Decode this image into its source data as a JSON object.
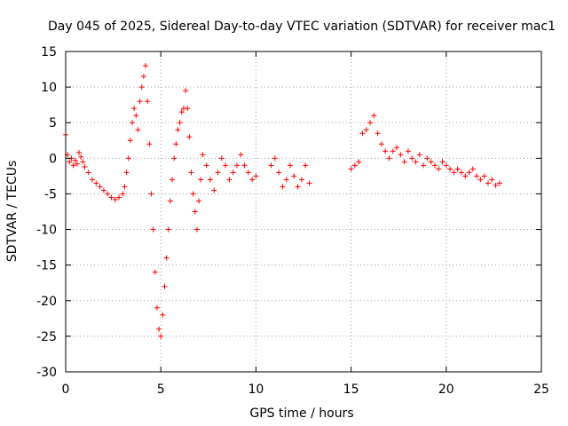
{
  "chart_data": {
    "type": "scatter",
    "title": "Day 045 of 2025, Sidereal Day-to-day VTEC variation (SDTVAR) for receiver mac1",
    "xlabel": "GPS time / hours",
    "ylabel": "SDTVAR / TECUs",
    "xlim": [
      0,
      25
    ],
    "ylim": [
      -30,
      15
    ],
    "xticks": [
      0,
      5,
      10,
      15,
      20,
      25
    ],
    "yticks": [
      -30,
      -25,
      -20,
      -15,
      -10,
      -5,
      0,
      5,
      10,
      15
    ],
    "grid": true,
    "marker": "+",
    "color": "#ff0000",
    "series": [
      {
        "name": "SDTVAR",
        "x": [
          0.0,
          0.1,
          0.2,
          0.3,
          0.4,
          0.5,
          0.6,
          0.7,
          0.8,
          0.9,
          1.0,
          1.2,
          1.4,
          1.6,
          1.8,
          2.0,
          2.2,
          2.4,
          2.6,
          2.8,
          3.0,
          3.1,
          3.2,
          3.3,
          3.4,
          3.5,
          3.6,
          3.7,
          3.8,
          3.9,
          4.0,
          4.1,
          4.2,
          4.3,
          4.4,
          4.5,
          4.6,
          4.7,
          4.8,
          4.9,
          5.0,
          5.1,
          5.2,
          5.3,
          5.4,
          5.5,
          5.6,
          5.7,
          5.8,
          5.9,
          6.0,
          6.1,
          6.2,
          6.3,
          6.4,
          6.5,
          6.6,
          6.7,
          6.8,
          6.9,
          7.0,
          7.1,
          7.2,
          7.4,
          7.6,
          7.8,
          8.0,
          8.2,
          8.4,
          8.6,
          8.8,
          9.0,
          9.2,
          9.4,
          9.6,
          9.8,
          10.0,
          10.8,
          11.0,
          11.2,
          11.4,
          11.6,
          11.8,
          12.0,
          12.2,
          12.4,
          12.6,
          12.8,
          15.0,
          15.2,
          15.4,
          15.6,
          15.8,
          16.0,
          16.2,
          16.4,
          16.6,
          16.8,
          17.0,
          17.2,
          17.4,
          17.6,
          17.8,
          18.0,
          18.2,
          18.4,
          18.6,
          18.8,
          19.0,
          19.2,
          19.4,
          19.6,
          19.8,
          20.0,
          20.2,
          20.4,
          20.6,
          20.8,
          21.0,
          21.2,
          21.4,
          21.6,
          21.8,
          22.0,
          22.2,
          22.4,
          22.6,
          22.8
        ],
        "y": [
          3.3,
          0.5,
          -0.5,
          0.0,
          -1.0,
          -0.3,
          -0.8,
          0.8,
          0.2,
          -0.5,
          -1.2,
          -2.0,
          -3.0,
          -3.5,
          -4.0,
          -4.5,
          -5.0,
          -5.5,
          -5.8,
          -5.5,
          -5.0,
          -4.0,
          -2.0,
          0.0,
          2.5,
          5.0,
          7.0,
          6.0,
          4.0,
          8.0,
          10.0,
          11.5,
          13.0,
          8.0,
          2.0,
          -5.0,
          -10.0,
          -16.0,
          -21.0,
          -24.0,
          -25.0,
          -22.0,
          -18.0,
          -14.0,
          -10.0,
          -6.0,
          -3.0,
          0.0,
          2.0,
          4.0,
          5.0,
          6.5,
          7.0,
          9.5,
          7.0,
          3.0,
          -2.0,
          -5.0,
          -7.5,
          -10.0,
          -6.0,
          -3.0,
          0.5,
          -1.0,
          -3.0,
          -4.5,
          -2.0,
          0.0,
          -1.0,
          -3.0,
          -2.0,
          -1.0,
          0.5,
          -1.0,
          -2.0,
          -3.0,
          -2.5,
          -1.0,
          0.0,
          -2.0,
          -4.0,
          -3.0,
          -1.0,
          -2.5,
          -4.0,
          -3.0,
          -1.0,
          -3.5,
          -1.5,
          -1.0,
          -0.5,
          3.5,
          4.0,
          5.0,
          6.0,
          3.5,
          2.0,
          1.0,
          0.0,
          1.0,
          1.5,
          0.5,
          -0.5,
          1.0,
          0.0,
          -0.5,
          0.5,
          -1.0,
          0.0,
          -0.5,
          -1.0,
          -1.5,
          -0.5,
          -1.0,
          -1.5,
          -2.0,
          -1.5,
          -2.0,
          -2.5,
          -2.0,
          -1.5,
          -2.5,
          -3.0,
          -2.5,
          -3.5,
          -3.0,
          -3.8,
          -3.5
        ]
      }
    ]
  }
}
